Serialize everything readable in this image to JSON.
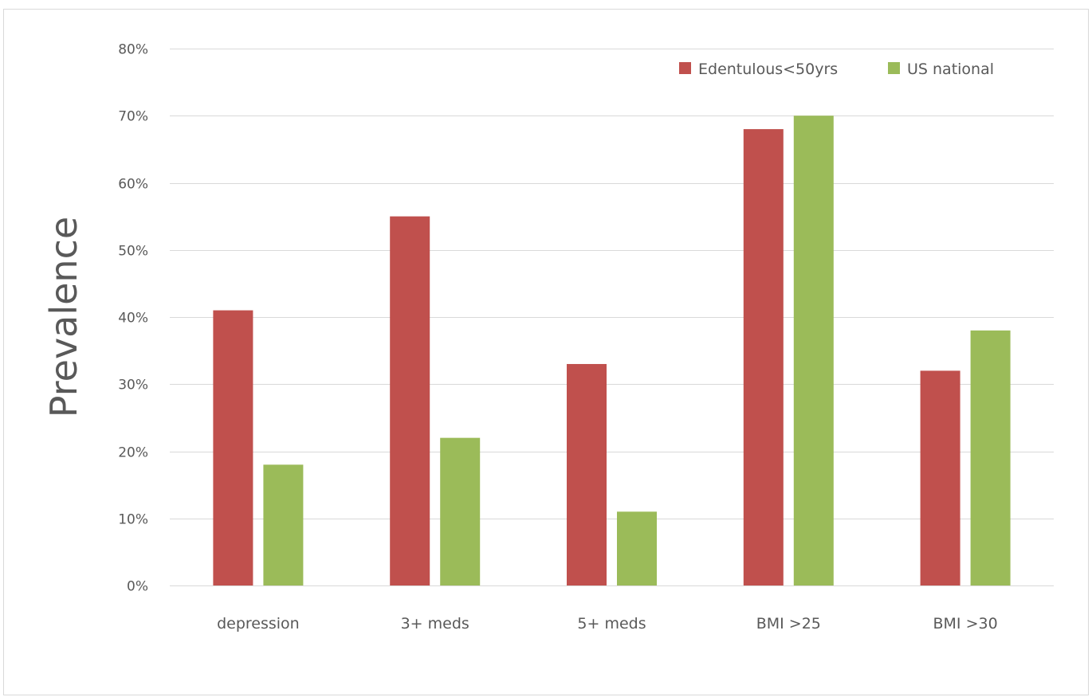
{
  "chart_data": {
    "type": "bar",
    "title": "",
    "xlabel": "",
    "ylabel": "Prevalence",
    "categories": [
      "depression",
      "3+ meds",
      "5+ meds",
      "BMI >25",
      "BMI >30"
    ],
    "series": [
      {
        "name": "Edentulous<50yrs",
        "color": "#c0504d",
        "values": [
          41,
          55,
          33,
          68,
          32
        ]
      },
      {
        "name": "US national",
        "color": "#9bbb59",
        "values": [
          18,
          22,
          11,
          70,
          38
        ]
      }
    ],
    "ylim": [
      0,
      80
    ],
    "y_ticks": [
      0,
      10,
      20,
      30,
      40,
      50,
      60,
      70,
      80
    ],
    "y_tick_labels": [
      "0%",
      "10%",
      "20%",
      "30%",
      "40%",
      "50%",
      "60%",
      "70%",
      "80%"
    ],
    "grid": true,
    "legend_position": "top-right",
    "colors": {
      "grid": "#d9d9d9",
      "text": "#595959",
      "frame": "#d9d9d9"
    }
  }
}
